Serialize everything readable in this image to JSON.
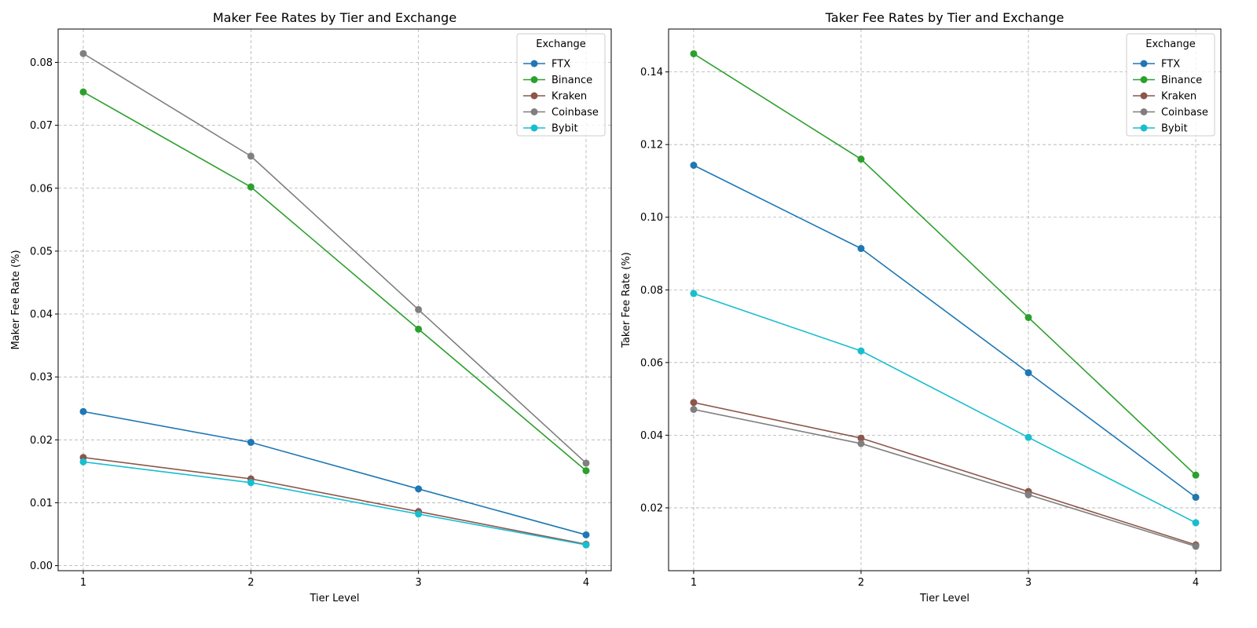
{
  "chart_data": [
    {
      "type": "line",
      "title": "Maker Fee Rates by Tier and Exchange",
      "xlabel": "Tier Level",
      "ylabel": "Maker Fee Rate (%)",
      "x": [
        1,
        2,
        3,
        4
      ],
      "xlim": [
        0.85,
        4.15
      ],
      "ylim": [
        -0.0008,
        0.0853
      ],
      "yticks": [
        0.0,
        0.01,
        0.02,
        0.03,
        0.04,
        0.05,
        0.06,
        0.07,
        0.08
      ],
      "ytick_labels": [
        "0.00",
        "0.01",
        "0.02",
        "0.03",
        "0.04",
        "0.05",
        "0.06",
        "0.07",
        "0.08"
      ],
      "xtick_labels": [
        "1",
        "2",
        "3",
        "4"
      ],
      "grid": true,
      "legend": {
        "title": "Exchange",
        "placement": "top-right"
      },
      "series": [
        {
          "name": "FTX",
          "color": "#1f77b4",
          "values": [
            0.0245,
            0.0196,
            0.0122,
            0.0049
          ]
        },
        {
          "name": "Binance",
          "color": "#2ca02c",
          "values": [
            0.0753,
            0.0602,
            0.0376,
            0.0151
          ]
        },
        {
          "name": "Kraken",
          "color": "#8c564b",
          "values": [
            0.0172,
            0.0138,
            0.0086,
            0.0034
          ]
        },
        {
          "name": "Coinbase",
          "color": "#7f7f7f",
          "values": [
            0.0814,
            0.0651,
            0.0407,
            0.0163
          ]
        },
        {
          "name": "Bybit",
          "color": "#17becf",
          "values": [
            0.0165,
            0.0132,
            0.0082,
            0.0033
          ]
        }
      ]
    },
    {
      "type": "line",
      "title": "Taker Fee Rates by Tier and Exchange",
      "xlabel": "Tier Level",
      "ylabel": "Taker Fee Rate (%)",
      "x": [
        1,
        2,
        3,
        4
      ],
      "xlim": [
        0.85,
        4.15
      ],
      "ylim": [
        0.0027,
        0.1518
      ],
      "yticks": [
        0.02,
        0.04,
        0.06,
        0.08,
        0.1,
        0.12,
        0.14
      ],
      "ytick_labels": [
        "0.02",
        "0.04",
        "0.06",
        "0.08",
        "0.10",
        "0.12",
        "0.14"
      ],
      "xtick_labels": [
        "1",
        "2",
        "3",
        "4"
      ],
      "grid": true,
      "legend": {
        "title": "Exchange",
        "placement": "top-right"
      },
      "series": [
        {
          "name": "FTX",
          "color": "#1f77b4",
          "values": [
            0.1143,
            0.0914,
            0.0572,
            0.0229
          ]
        },
        {
          "name": "Binance",
          "color": "#2ca02c",
          "values": [
            0.145,
            0.116,
            0.0724,
            0.029
          ]
        },
        {
          "name": "Kraken",
          "color": "#8c564b",
          "values": [
            0.049,
            0.0392,
            0.0245,
            0.0098
          ]
        },
        {
          "name": "Coinbase",
          "color": "#7f7f7f",
          "values": [
            0.0471,
            0.0377,
            0.0236,
            0.0094
          ]
        },
        {
          "name": "Bybit",
          "color": "#17becf",
          "values": [
            0.079,
            0.0632,
            0.0394,
            0.0159
          ]
        }
      ]
    }
  ]
}
